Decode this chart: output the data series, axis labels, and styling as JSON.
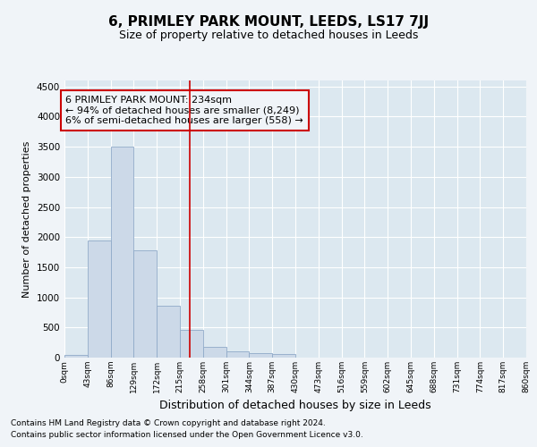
{
  "title": "6, PRIMLEY PARK MOUNT, LEEDS, LS17 7JJ",
  "subtitle": "Size of property relative to detached houses in Leeds",
  "xlabel": "Distribution of detached houses by size in Leeds",
  "ylabel": "Number of detached properties",
  "bar_color": "#ccd9e8",
  "bar_edge_color": "#90aac8",
  "annotation_box_color": "#cc0000",
  "vline_color": "#cc0000",
  "property_size": 234,
  "annotation_lines": [
    "6 PRIMLEY PARK MOUNT: 234sqm",
    "← 94% of detached houses are smaller (8,249)",
    "6% of semi-detached houses are larger (558) →"
  ],
  "bin_edges": [
    0,
    43,
    86,
    129,
    172,
    215,
    258,
    301,
    344,
    387,
    430,
    473,
    516,
    559,
    602,
    645,
    688,
    731,
    774,
    817,
    860
  ],
  "bar_values": [
    50,
    1950,
    3500,
    1780,
    860,
    460,
    175,
    100,
    70,
    55,
    0,
    0,
    0,
    0,
    0,
    0,
    0,
    0,
    0,
    0
  ],
  "ylim": [
    0,
    4600
  ],
  "yticks": [
    0,
    500,
    1000,
    1500,
    2000,
    2500,
    3000,
    3500,
    4000,
    4500
  ],
  "footer_line1": "Contains HM Land Registry data © Crown copyright and database right 2024.",
  "footer_line2": "Contains public sector information licensed under the Open Government Licence v3.0.",
  "bg_color": "#f0f4f8",
  "plot_bg_color": "#dce8f0"
}
